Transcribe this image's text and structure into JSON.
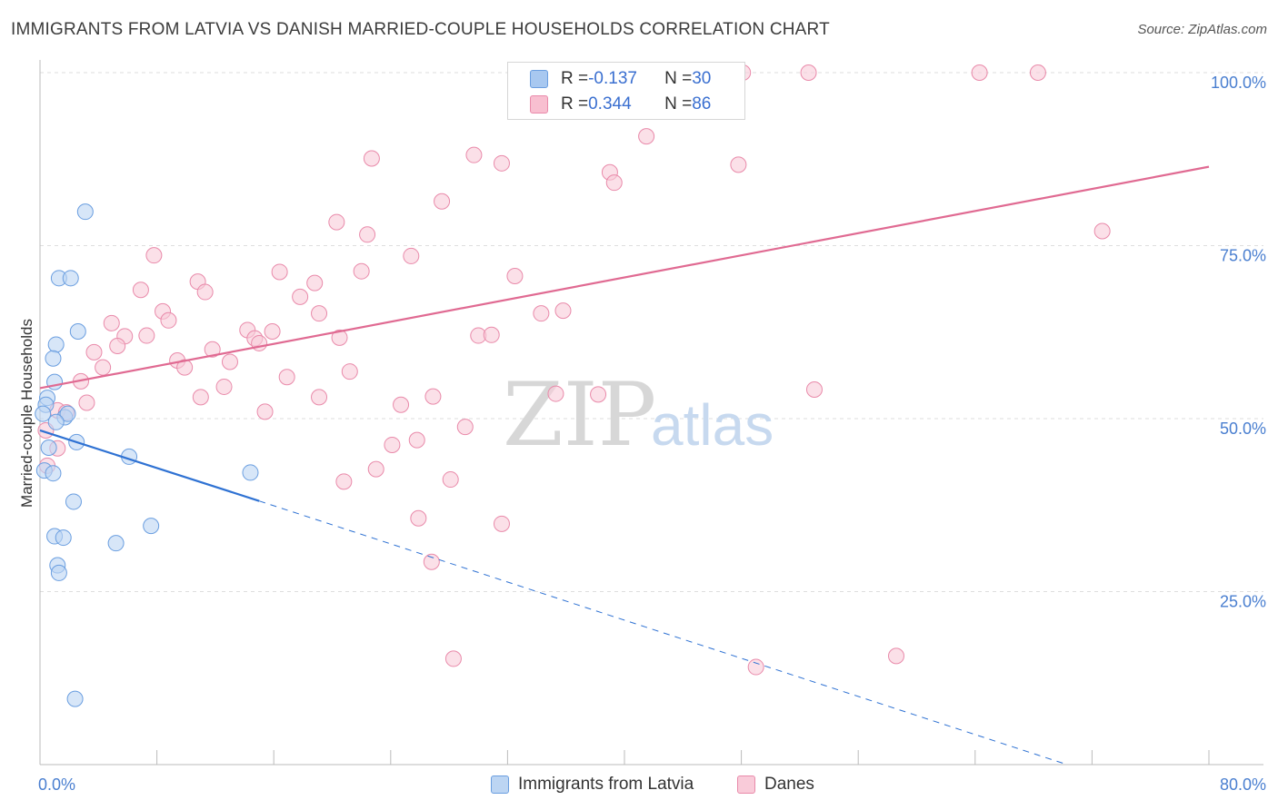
{
  "header": {
    "title": "IMMIGRANTS FROM LATVIA VS DANISH MARRIED-COUPLE HOUSEHOLDS CORRELATION CHART",
    "source": "Source: ZipAtlas.com"
  },
  "watermark": {
    "zip": "ZIP",
    "atlas": "atlas"
  },
  "legend": {
    "rows": [
      {
        "r_label": "R = ",
        "r_value": "-0.137",
        "n_label": "N = ",
        "n_value": "30",
        "color": "#a8c8f0",
        "border": "#6a9ee0"
      },
      {
        "r_label": "R = ",
        "r_value": "0.344",
        "n_label": "N = ",
        "n_value": "86",
        "color": "#f8bfd0",
        "border": "#e98aaa"
      }
    ]
  },
  "bottom_legend": {
    "items": [
      {
        "label": "Immigrants from Latvia",
        "color": "#bcd5f3",
        "border": "#6a9ee0"
      },
      {
        "label": "Danes",
        "color": "#f9cbd9",
        "border": "#e98aaa"
      }
    ]
  },
  "chart_data": {
    "type": "scatter",
    "title": "IMMIGRANTS FROM LATVIA VS DANISH MARRIED-COUPLE HOUSEHOLDS CORRELATION CHART",
    "xlabel": "",
    "ylabel": "Married-couple Households",
    "xlim": [
      0,
      80
    ],
    "ylim": [
      0,
      105
    ],
    "x_tick_labels": [
      "0.0%",
      "80.0%"
    ],
    "y_ticks": [
      25,
      50,
      75,
      100
    ],
    "y_tick_labels": [
      "25.0%",
      "50.0%",
      "75.0%",
      "100.0%"
    ],
    "grid": true,
    "legend_position": "top-center",
    "series": [
      {
        "name": "Immigrants from Latvia",
        "color": "#6a9ee0",
        "fill": "#bcd5f3",
        "trend_color": "#2f72d3",
        "trend": {
          "x0": 0,
          "y0": 48.3,
          "x1": 15.0,
          "y1": 38.1,
          "dash_to_x": 70.3,
          "dash_to_y": 0
        },
        "points": [
          [
            3.1,
            79.9
          ],
          [
            1.3,
            70.3
          ],
          [
            2.1,
            70.3
          ],
          [
            2.6,
            62.6
          ],
          [
            1.1,
            60.7
          ],
          [
            0.9,
            58.7
          ],
          [
            1.0,
            55.3
          ],
          [
            0.5,
            53.0
          ],
          [
            0.4,
            52.0
          ],
          [
            0.2,
            50.7
          ],
          [
            1.7,
            50.2
          ],
          [
            1.9,
            50.7
          ],
          [
            1.1,
            49.5
          ],
          [
            0.6,
            45.8
          ],
          [
            2.5,
            46.6
          ],
          [
            6.1,
            44.5
          ],
          [
            0.3,
            42.5
          ],
          [
            0.9,
            42.1
          ],
          [
            14.4,
            42.2
          ],
          [
            2.3,
            38.0
          ],
          [
            7.6,
            34.5
          ],
          [
            1.0,
            33.0
          ],
          [
            1.6,
            32.8
          ],
          [
            5.2,
            32.0
          ],
          [
            1.2,
            28.8
          ],
          [
            1.3,
            27.7
          ],
          [
            2.4,
            9.5
          ]
        ]
      },
      {
        "name": "Danes",
        "color": "#e98aaa",
        "fill": "#f9cbd9",
        "trend_color": "#e06a92",
        "trend": {
          "x0": 0,
          "y0": 54.4,
          "x1": 80,
          "y1": 86.4
        },
        "points": [
          [
            38.6,
            99.9
          ],
          [
            42.6,
            100.0
          ],
          [
            44.5,
            100.0
          ],
          [
            48.1,
            100.0
          ],
          [
            52.6,
            100.0
          ],
          [
            64.3,
            100.0
          ],
          [
            68.3,
            100.0
          ],
          [
            37.2,
            95.2
          ],
          [
            41.5,
            90.8
          ],
          [
            29.7,
            88.1
          ],
          [
            22.7,
            87.6
          ],
          [
            31.6,
            86.9
          ],
          [
            47.8,
            86.7
          ],
          [
            39.0,
            85.6
          ],
          [
            39.3,
            84.1
          ],
          [
            27.5,
            81.4
          ],
          [
            20.3,
            78.4
          ],
          [
            22.4,
            76.6
          ],
          [
            72.7,
            77.1
          ],
          [
            7.8,
            73.6
          ],
          [
            25.4,
            73.5
          ],
          [
            16.4,
            71.2
          ],
          [
            22.0,
            71.3
          ],
          [
            32.5,
            70.6
          ],
          [
            10.8,
            69.8
          ],
          [
            18.8,
            69.6
          ],
          [
            6.9,
            68.6
          ],
          [
            11.3,
            68.3
          ],
          [
            17.8,
            67.6
          ],
          [
            35.8,
            65.6
          ],
          [
            8.4,
            65.5
          ],
          [
            34.3,
            65.2
          ],
          [
            8.8,
            64.2
          ],
          [
            19.1,
            65.2
          ],
          [
            4.9,
            63.8
          ],
          [
            14.2,
            62.8
          ],
          [
            15.9,
            62.6
          ],
          [
            7.3,
            62.0
          ],
          [
            5.8,
            61.9
          ],
          [
            14.7,
            61.6
          ],
          [
            30.0,
            62.0
          ],
          [
            30.9,
            62.1
          ],
          [
            20.5,
            61.7
          ],
          [
            15.0,
            60.9
          ],
          [
            5.3,
            60.5
          ],
          [
            11.8,
            60.0
          ],
          [
            3.7,
            59.6
          ],
          [
            9.4,
            58.4
          ],
          [
            13.0,
            58.2
          ],
          [
            4.3,
            57.4
          ],
          [
            9.9,
            57.4
          ],
          [
            21.2,
            56.8
          ],
          [
            16.9,
            56.0
          ],
          [
            2.8,
            55.4
          ],
          [
            12.6,
            54.6
          ],
          [
            35.3,
            53.6
          ],
          [
            38.2,
            53.5
          ],
          [
            11.0,
            53.1
          ],
          [
            19.1,
            53.1
          ],
          [
            26.9,
            53.2
          ],
          [
            3.2,
            52.3
          ],
          [
            24.7,
            52.0
          ],
          [
            1.2,
            51.2
          ],
          [
            1.8,
            50.9
          ],
          [
            15.4,
            51.0
          ],
          [
            53.0,
            54.2
          ],
          [
            29.1,
            48.8
          ],
          [
            25.8,
            46.9
          ],
          [
            24.1,
            46.2
          ],
          [
            1.2,
            45.7
          ],
          [
            0.5,
            43.2
          ],
          [
            23.0,
            42.7
          ],
          [
            20.8,
            40.9
          ],
          [
            28.1,
            41.2
          ],
          [
            25.9,
            35.6
          ],
          [
            31.6,
            34.8
          ],
          [
            26.8,
            29.3
          ],
          [
            28.3,
            15.3
          ],
          [
            49.0,
            14.1
          ],
          [
            58.6,
            15.7
          ],
          [
            0.4,
            48.3
          ]
        ]
      }
    ]
  }
}
